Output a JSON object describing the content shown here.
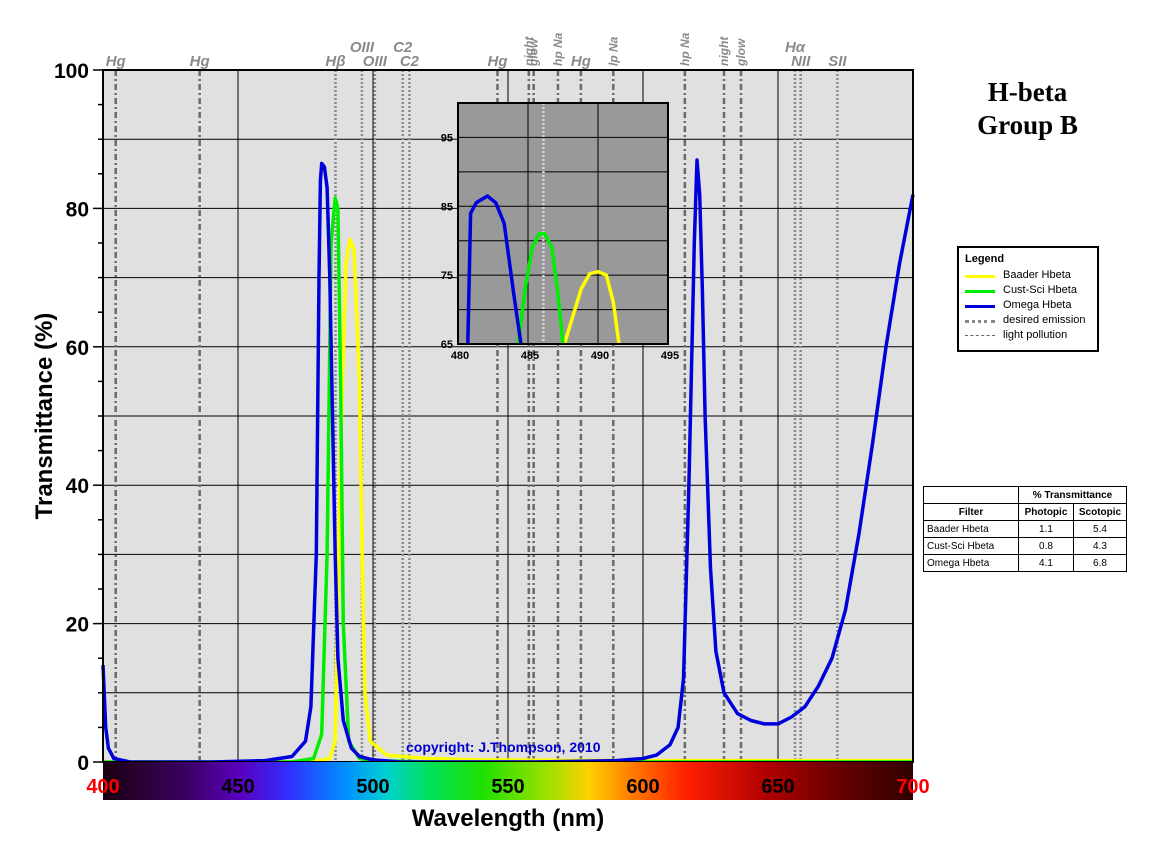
{
  "figure": {
    "title_line1": "H-beta",
    "title_line2": "Group B",
    "copyright": "copyright: J.Thompson, 2010"
  },
  "chart_data": [
    {
      "type": "line",
      "xlabel": "Wavelength (nm)",
      "ylabel": "Transmittance (%)",
      "xlim": [
        400,
        700
      ],
      "ylim": [
        0,
        100
      ],
      "x_ticks": [
        400,
        450,
        500,
        550,
        600,
        650,
        700
      ],
      "x_tick_labels": [
        "400",
        "450",
        "500",
        "550",
        "600",
        "650",
        "700"
      ],
      "y_ticks": [
        0,
        20,
        40,
        60,
        80,
        100
      ],
      "y_tick_labels": [
        "0",
        "20",
        "40",
        "60",
        "80",
        "100"
      ],
      "grid": true,
      "colors": {
        "baader": "#ffff00",
        "custsci": "#00ee00",
        "omega": "#0000dd"
      },
      "series": [
        {
          "name": "Baader Hbeta",
          "color": "#ffff00",
          "x": [
            400,
            470,
            480,
            484,
            486,
            488,
            490,
            491.5,
            493,
            495,
            496,
            497,
            499,
            505,
            520,
            540,
            600,
            650,
            700
          ],
          "y": [
            0,
            0,
            0.2,
            0.5,
            3,
            45,
            72,
            75.5,
            74,
            55,
            30,
            10,
            3,
            1,
            0.5,
            0.3,
            0.2,
            0.2,
            0.2
          ]
        },
        {
          "name": "Cust-Sci Hbeta",
          "color": "#00ee00",
          "x": [
            400,
            470,
            478,
            481,
            483,
            484.5,
            486,
            487,
            488,
            489,
            491,
            495,
            500,
            520,
            700
          ],
          "y": [
            0,
            0,
            0.5,
            4,
            30,
            75,
            81.5,
            80,
            55,
            20,
            3,
            0.5,
            0.2,
            0,
            0
          ]
        },
        {
          "name": "Omega Hbeta",
          "color": "#0000dd",
          "x": [
            400,
            401,
            402,
            404,
            410,
            440,
            460,
            470,
            475,
            477,
            479,
            480,
            480.5,
            481,
            482,
            483,
            484,
            485,
            486,
            487,
            489,
            492,
            495,
            500,
            510,
            530,
            560,
            590,
            600,
            605,
            610,
            613,
            615,
            617,
            619,
            620,
            621,
            622,
            623,
            625,
            627,
            630,
            635,
            640,
            645,
            650,
            655,
            660,
            665,
            670,
            675,
            680,
            685,
            690,
            695,
            700
          ],
          "y": [
            14,
            5,
            2,
            0.5,
            0,
            0,
            0.2,
            0.8,
            3,
            8,
            30,
            70,
            84,
            86.5,
            86,
            83,
            70,
            50,
            30,
            15,
            6,
            2,
            0.8,
            0.3,
            0,
            0,
            0,
            0.2,
            0.5,
            1,
            2.5,
            5,
            12,
            40,
            75,
            87,
            82,
            68,
            50,
            28,
            16,
            10,
            7,
            6,
            5.5,
            5.5,
            6.5,
            8,
            11,
            15,
            22,
            33,
            46,
            60,
            72,
            82
          ]
        }
      ],
      "emission_lines": [
        {
          "label": "Hg",
          "x": 404.7,
          "kind": "pollution",
          "row": 0
        },
        {
          "label": "Hg",
          "x": 435.8,
          "kind": "pollution",
          "row": 0
        },
        {
          "label": "Hβ",
          "x": 486.1,
          "kind": "desired",
          "row": 0
        },
        {
          "label": "OIII",
          "x": 495.9,
          "kind": "desired",
          "row": 1
        },
        {
          "label": "OIII",
          "x": 500.7,
          "kind": "desired",
          "row": 0
        },
        {
          "label": "C2",
          "x": 511.0,
          "kind": "desired",
          "row": 1
        },
        {
          "label": "C2",
          "x": 513.5,
          "kind": "desired",
          "row": 0
        },
        {
          "label": "Hg",
          "x": 546.1,
          "kind": "pollution",
          "row": 0
        },
        {
          "label": "night",
          "x": 557.7,
          "kind": "pollution",
          "rotated": true
        },
        {
          "label": "glow",
          "x": 559.5,
          "kind": "pollution",
          "rotated": true
        },
        {
          "label": "hp Na",
          "x": 568.5,
          "kind": "pollution",
          "rotated": true
        },
        {
          "label": "Hg",
          "x": 577.0,
          "kind": "pollution",
          "row": 0
        },
        {
          "label": "lp Na",
          "x": 589.0,
          "kind": "pollution",
          "rotated": true
        },
        {
          "label": "hp Na",
          "x": 615.5,
          "kind": "pollution",
          "rotated": true
        },
        {
          "label": "night",
          "x": 630.0,
          "kind": "pollution",
          "rotated": true
        },
        {
          "label": "glow",
          "x": 636.3,
          "kind": "pollution",
          "rotated": true
        },
        {
          "label": "Hα",
          "x": 656.3,
          "kind": "desired",
          "row": 1
        },
        {
          "label": "NII",
          "x": 658.4,
          "kind": "desired",
          "row": 0
        },
        {
          "label": "SII",
          "x": 672.0,
          "kind": "desired",
          "row": 0
        }
      ]
    },
    {
      "type": "line",
      "inset": true,
      "xlim": [
        480,
        495
      ],
      "ylim": [
        65,
        100
      ],
      "x_ticks": [
        480,
        485,
        490,
        495
      ],
      "x_tick_labels": [
        "480",
        "485",
        "490",
        "495"
      ],
      "y_ticks": [
        65,
        75,
        85,
        95
      ],
      "y_tick_labels": [
        "65",
        "75",
        "85",
        "95"
      ],
      "grid": true,
      "series": [
        {
          "name": "Baader Hbeta",
          "color": "#ffff00",
          "x": [
            487.6,
            488.2,
            488.8,
            489.4,
            490.0,
            490.6,
            491.1,
            491.5
          ],
          "y": [
            65,
            69,
            73,
            75.2,
            75.5,
            75.0,
            71,
            65
          ]
        },
        {
          "name": "Cust-Sci Hbeta",
          "color": "#00ee00",
          "x": [
            484.3,
            484.8,
            485.3,
            485.8,
            486.2,
            486.7,
            487.1,
            487.5
          ],
          "y": [
            65,
            73,
            79,
            81,
            81,
            79,
            73,
            65
          ]
        },
        {
          "name": "Omega Hbeta",
          "color": "#0000dd",
          "x": [
            480.7,
            480.9,
            481.3,
            482.1,
            482.7,
            483.3,
            484.0,
            484.5
          ],
          "y": [
            65,
            84,
            85.5,
            86.5,
            85.5,
            82.5,
            72,
            65
          ]
        }
      ],
      "marker_x": 486.1
    }
  ],
  "legend": {
    "title": "Legend",
    "items": [
      {
        "label": "Baader Hbeta",
        "color": "#ffff00",
        "style": "solid"
      },
      {
        "label": "Cust-Sci Hbeta",
        "color": "#00ee00",
        "style": "solid"
      },
      {
        "label": "Omega Hbeta",
        "color": "#0000dd",
        "style": "solid"
      },
      {
        "label": "desired emission",
        "color": "#888888",
        "style": "dotted"
      },
      {
        "label": "light pollution",
        "color": "#666666",
        "style": "dashdot"
      }
    ]
  },
  "trans_table": {
    "group_header": "% Transmittance",
    "col_filter": "Filter",
    "col_photopic": "Photopic",
    "col_scotopic": "Scotopic",
    "rows": [
      {
        "filter": "Baader Hbeta",
        "photopic": "1.1",
        "scotopic": "5.4"
      },
      {
        "filter": "Cust-Sci Hbeta",
        "photopic": "0.8",
        "scotopic": "4.3"
      },
      {
        "filter": "Omega Hbeta",
        "photopic": "4.1",
        "scotopic": "6.8"
      }
    ]
  }
}
